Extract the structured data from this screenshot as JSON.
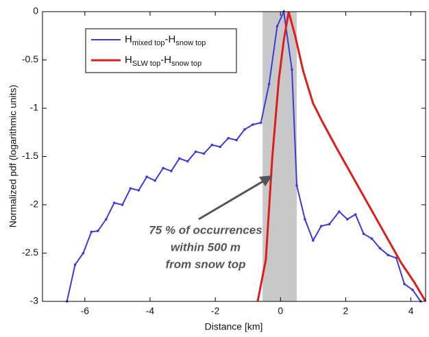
{
  "chart_data": {
    "type": "line",
    "xlabel": "Distance [km]",
    "ylabel": "Normalized pdf (logarithmic units)",
    "xlim": [
      -7.3,
      4.45
    ],
    "ylim": [
      -3,
      0
    ],
    "xticks": [
      -6,
      -4,
      -2,
      0,
      2,
      4
    ],
    "yticks": [
      0,
      -0.5,
      -1,
      -1.5,
      -2,
      -2.5,
      -3
    ],
    "grid": false,
    "shaded_region": [
      -0.55,
      0.5
    ],
    "shade_color": "#c8c8c8",
    "annotation": [
      "75 % of occurrences",
      "within 500 m",
      "from snow top"
    ],
    "series": [
      {
        "name": [
          "H",
          "mixed top",
          "-H",
          "snow top"
        ],
        "color": "#3a3ad8",
        "marker": true,
        "x": [
          -6.55,
          -6.3,
          -6.05,
          -5.8,
          -5.6,
          -5.35,
          -5.1,
          -4.85,
          -4.6,
          -4.35,
          -4.1,
          -3.85,
          -3.6,
          -3.35,
          -3.1,
          -2.85,
          -2.6,
          -2.35,
          -2.1,
          -1.85,
          -1.6,
          -1.35,
          -1.1,
          -0.85,
          -0.6,
          -0.35,
          -0.1,
          0.1,
          0.35,
          0.5,
          0.75,
          1.0,
          1.25,
          1.5,
          1.8,
          2.05,
          2.3,
          2.55,
          2.8,
          3.05,
          3.3,
          3.55,
          3.8,
          4.05,
          4.3
        ],
        "values": [
          -3,
          -2.62,
          -2.5,
          -2.28,
          -2.27,
          -2.15,
          -1.98,
          -2.0,
          -1.83,
          -1.85,
          -1.71,
          -1.75,
          -1.62,
          -1.65,
          -1.52,
          -1.55,
          -1.45,
          -1.47,
          -1.38,
          -1.4,
          -1.31,
          -1.33,
          -1.22,
          -1.17,
          -1.15,
          -0.75,
          -0.15,
          0,
          -0.6,
          -1.8,
          -2.15,
          -2.37,
          -2.22,
          -2.2,
          -2.07,
          -2.15,
          -2.1,
          -2.3,
          -2.35,
          -2.45,
          -2.52,
          -2.55,
          -2.82,
          -2.88,
          -3
        ]
      },
      {
        "name": [
          "H",
          "SLW top",
          "-H",
          "snow top"
        ],
        "color": "#e01b1b",
        "marker": false,
        "x": [
          -0.7,
          -0.45,
          -0.25,
          -0.05,
          0.1,
          0.25,
          0.45,
          0.7,
          1.0,
          1.3,
          1.7,
          2.2,
          2.7,
          3.2,
          3.7,
          4.1,
          4.45
        ],
        "values": [
          -3,
          -2.57,
          -1.5,
          -0.7,
          -0.3,
          0,
          -0.25,
          -0.62,
          -0.95,
          -1.15,
          -1.4,
          -1.7,
          -2.0,
          -2.3,
          -2.6,
          -2.8,
          -3
        ]
      }
    ]
  }
}
